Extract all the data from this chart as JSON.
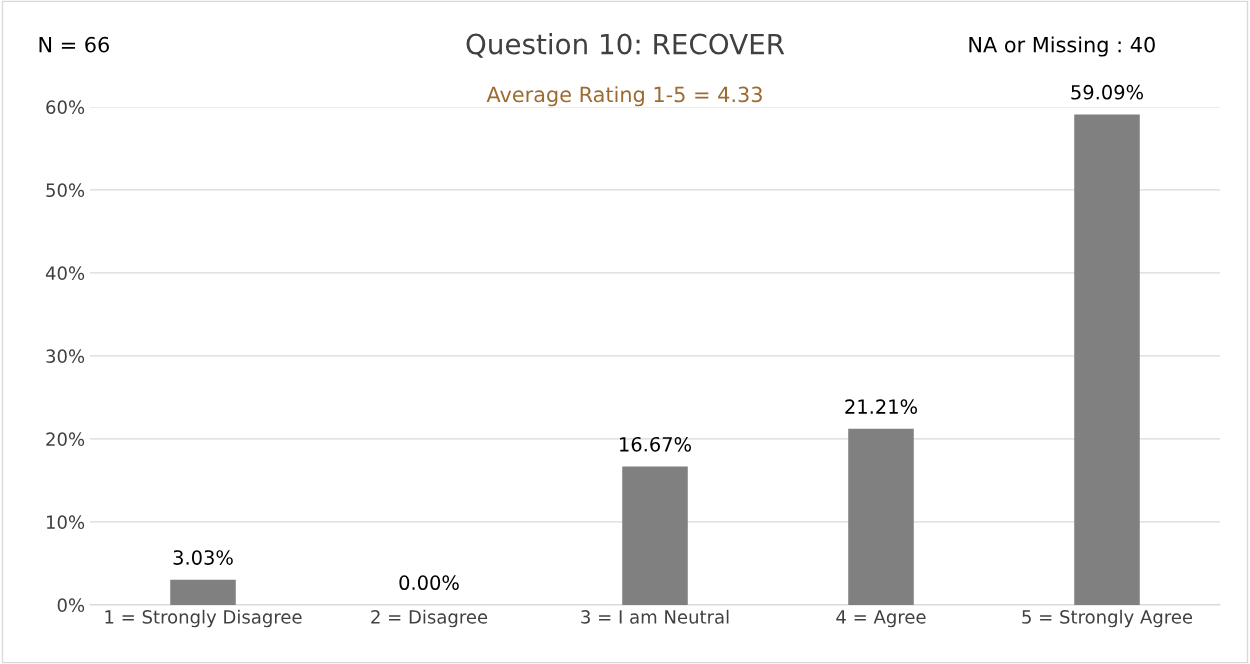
{
  "chart_data": {
    "type": "bar",
    "title": "Question 10: RECOVER",
    "subtitle": "Average Rating 1-5 = 4.33",
    "categories": [
      "1 = Strongly Disagree",
      "2 = Disagree",
      "3 = I am Neutral",
      "4 = Agree",
      "5 = Strongly Agree"
    ],
    "values": [
      3.03,
      0.0,
      16.67,
      21.21,
      59.09
    ],
    "color": "#808080",
    "value_labels": [
      "3.03%",
      "0.00%",
      "16.67%",
      "21.21%",
      "59.09%"
    ],
    "ylim": [
      0,
      60
    ],
    "yticks": [
      {
        "value": 0,
        "label": "0%"
      },
      {
        "value": 10,
        "label": "10%"
      },
      {
        "value": 20,
        "label": "20%"
      },
      {
        "value": 30,
        "label": "30%"
      },
      {
        "value": 40,
        "label": "40%"
      },
      {
        "value": 50,
        "label": "50%"
      },
      {
        "value": 60,
        "label": "60%"
      }
    ],
    "grid": "y",
    "annotations": [
      "N = 66",
      "NA or Missing : 40"
    ]
  }
}
